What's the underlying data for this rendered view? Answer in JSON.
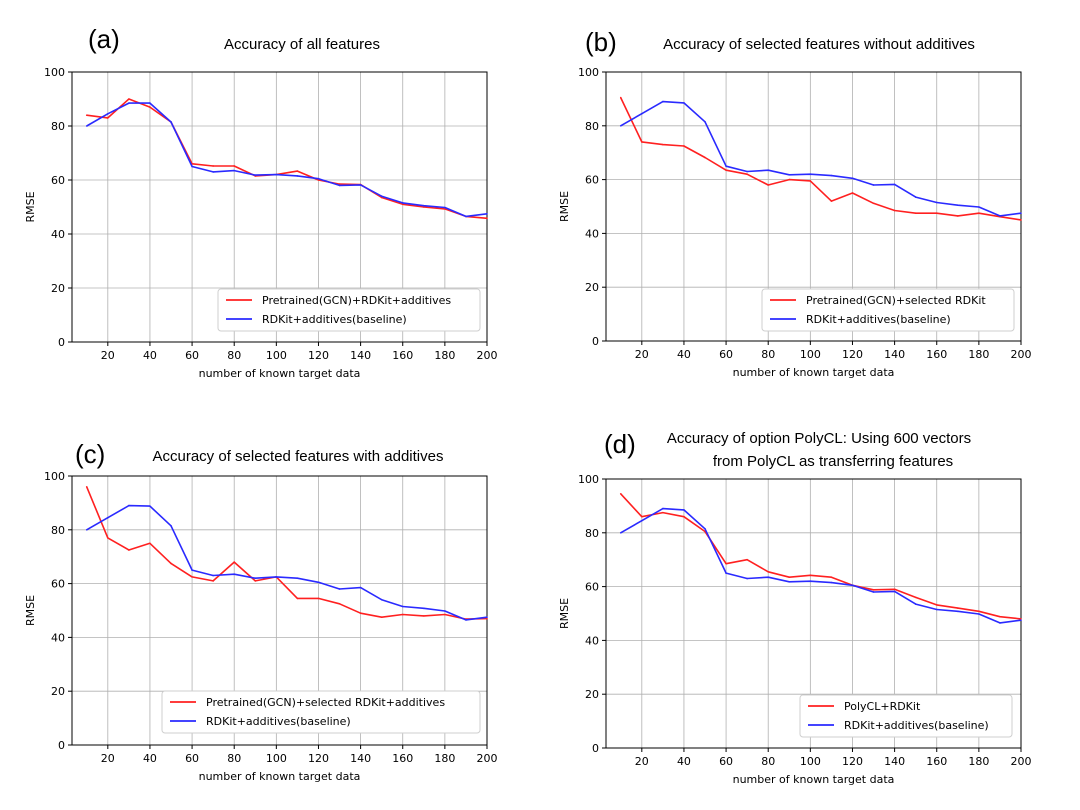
{
  "chart_data": [
    {
      "panel": "(a)",
      "type": "line",
      "title": "Accuracy of all features",
      "xlabel": "number of known target data",
      "ylabel": "RMSE",
      "xlim": [
        3,
        200
      ],
      "ylim": [
        0,
        100
      ],
      "xticks": [
        20,
        40,
        60,
        80,
        100,
        120,
        140,
        160,
        180,
        200
      ],
      "yticks": [
        0,
        20,
        40,
        60,
        80,
        100
      ],
      "grid": true,
      "legend_position": "lower-right",
      "x": [
        10,
        20,
        30,
        40,
        50,
        60,
        70,
        80,
        90,
        100,
        110,
        120,
        130,
        140,
        150,
        160,
        170,
        180,
        190,
        200
      ],
      "series": [
        {
          "name": "Pretrained(GCN)+RDKit+additives",
          "color": "#ff2020",
          "values": [
            84,
            83,
            90,
            87,
            81.5,
            66,
            65.2,
            65.2,
            61.5,
            62,
            63.3,
            60,
            58.5,
            58.3,
            53.5,
            51,
            50,
            49.3,
            46.5,
            45.8
          ]
        },
        {
          "name": "RDKit+additives(baseline)",
          "color": "#2a2aff",
          "values": [
            80,
            84.5,
            88.5,
            88.5,
            81.5,
            65,
            63,
            63.5,
            61.8,
            62,
            61.5,
            60.5,
            58,
            58.2,
            54,
            51.5,
            50.5,
            49.8,
            46.5,
            47.5
          ]
        }
      ]
    },
    {
      "panel": "(b)",
      "type": "line",
      "title": "Accuracy of selected features without additives",
      "xlabel": "number of known target data",
      "ylabel": "RMSE",
      "xlim": [
        3,
        200
      ],
      "ylim": [
        0,
        100
      ],
      "xticks": [
        20,
        40,
        60,
        80,
        100,
        120,
        140,
        160,
        180,
        200
      ],
      "yticks": [
        0,
        20,
        40,
        60,
        80,
        100
      ],
      "grid": true,
      "legend_position": "lower-right",
      "x": [
        10,
        20,
        30,
        40,
        50,
        60,
        70,
        80,
        90,
        100,
        110,
        120,
        130,
        140,
        150,
        160,
        170,
        180,
        190,
        200
      ],
      "series": [
        {
          "name": "Pretrained(GCN)+selected RDKit",
          "color": "#ff2020",
          "values": [
            90.5,
            74,
            73,
            72.5,
            68.2,
            63.5,
            62,
            58,
            60,
            59.5,
            52,
            55,
            51.2,
            48.5,
            47.5,
            47.5,
            46.5,
            47.5,
            46.2,
            45
          ]
        },
        {
          "name": "RDKit+additives(baseline)",
          "color": "#2a2aff",
          "values": [
            80,
            84.5,
            89,
            88.5,
            81.5,
            65,
            63,
            63.5,
            61.8,
            62,
            61.5,
            60.5,
            58,
            58.2,
            53.5,
            51.5,
            50.5,
            49.8,
            46.5,
            47.5
          ]
        }
      ]
    },
    {
      "panel": "(c)",
      "type": "line",
      "title": "Accuracy of selected features with additives",
      "xlabel": "number of known target data",
      "ylabel": "RMSE",
      "xlim": [
        3,
        200
      ],
      "ylim": [
        0,
        100
      ],
      "xticks": [
        20,
        40,
        60,
        80,
        100,
        120,
        140,
        160,
        180,
        200
      ],
      "yticks": [
        0,
        20,
        40,
        60,
        80,
        100
      ],
      "grid": true,
      "legend_position": "lower-right",
      "x": [
        10,
        20,
        30,
        40,
        50,
        60,
        70,
        80,
        90,
        100,
        110,
        120,
        130,
        140,
        150,
        160,
        170,
        180,
        190,
        200
      ],
      "series": [
        {
          "name": "Pretrained(GCN)+selected RDKit+additives",
          "color": "#ff2020",
          "values": [
            96,
            77,
            72.5,
            75,
            67.5,
            62.5,
            61,
            68,
            61,
            62.5,
            54.5,
            54.5,
            52.5,
            49,
            47.5,
            48.5,
            48,
            48.5,
            46.8,
            47
          ]
        },
        {
          "name": "RDKit+additives(baseline)",
          "color": "#2a2aff",
          "values": [
            80,
            84.5,
            89,
            88.8,
            81.5,
            65,
            63,
            63.5,
            62,
            62.5,
            62,
            60.5,
            58,
            58.5,
            54,
            51.5,
            50.8,
            49.8,
            46.5,
            47.5
          ]
        }
      ]
    },
    {
      "panel": "(d)",
      "type": "line",
      "title": "Accuracy of option PolyCL: Using 600 vectors",
      "title_line2": "from PolyCL as transferring features",
      "xlabel": "number of known target data",
      "ylabel": "RMSE",
      "xlim": [
        3,
        200
      ],
      "ylim": [
        0,
        100
      ],
      "xticks": [
        20,
        40,
        60,
        80,
        100,
        120,
        140,
        160,
        180,
        200
      ],
      "yticks": [
        0,
        20,
        40,
        60,
        80,
        100
      ],
      "grid": true,
      "legend_position": "lower-right",
      "x": [
        10,
        20,
        30,
        40,
        50,
        60,
        70,
        80,
        90,
        100,
        110,
        120,
        130,
        140,
        150,
        160,
        170,
        180,
        190,
        200
      ],
      "series": [
        {
          "name": "PolyCL+RDKit",
          "color": "#ff2020",
          "values": [
            94.5,
            86,
            87.5,
            86,
            80.5,
            68.5,
            70,
            65.5,
            63.5,
            64.2,
            63.5,
            60.5,
            58.8,
            59,
            56,
            53.2,
            52,
            50.8,
            48.8,
            48
          ]
        },
        {
          "name": "RDKit+additives(baseline)",
          "color": "#2a2aff",
          "values": [
            80,
            84.5,
            89,
            88.5,
            81.5,
            65,
            63,
            63.5,
            61.8,
            62,
            61.5,
            60.5,
            58,
            58.2,
            53.5,
            51.5,
            50.8,
            49.8,
            46.5,
            47.5
          ]
        }
      ]
    }
  ]
}
